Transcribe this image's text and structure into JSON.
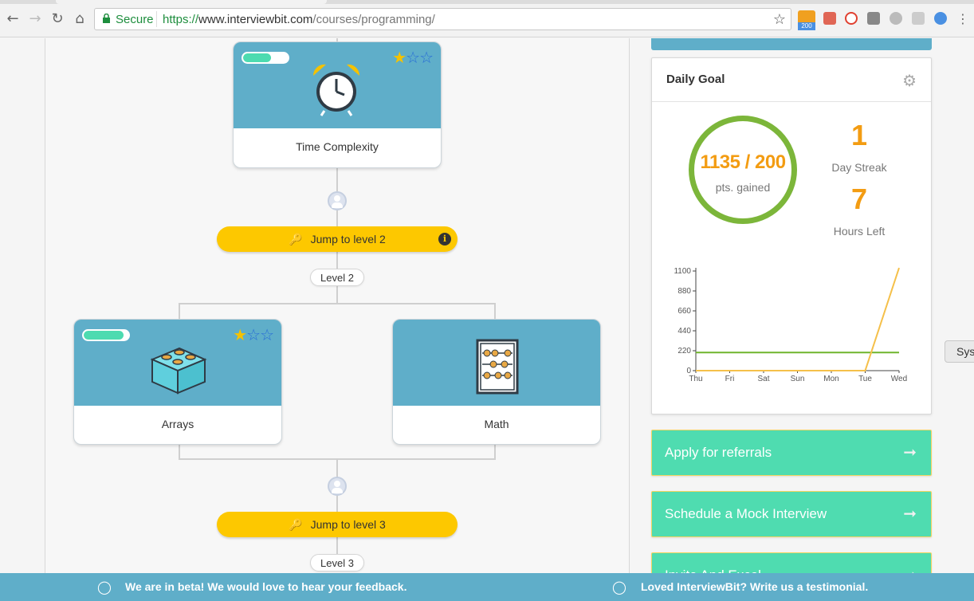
{
  "browser": {
    "secure_label": "Secure",
    "url_protocol": "https://",
    "url_host": "www.interviewbit.com",
    "url_path": "/courses/programming/",
    "ext_badge": "200"
  },
  "path": {
    "cards": [
      {
        "label": "Time Complexity",
        "progress": 0.62,
        "stars": {
          "half": 1,
          "empty": 2
        },
        "icon": "alarm-clock-icon"
      },
      {
        "label": "Arrays",
        "progress": 0.9,
        "stars": {
          "half": 1,
          "empty": 2
        },
        "icon": "lego-brick-icon"
      },
      {
        "label": "Math",
        "icon": "abacus-icon"
      }
    ],
    "jump_buttons": [
      {
        "label": "Jump to level 2"
      },
      {
        "label": "Jump to level 3"
      }
    ],
    "levels": [
      "Level 2",
      "Level 3"
    ]
  },
  "daily_goal": {
    "title": "Daily Goal",
    "points": "1135 / 200",
    "points_label": "pts. gained",
    "streak_value": "1",
    "streak_label": "Day Streak",
    "hours_value": "7",
    "hours_label": "Hours Left"
  },
  "chart_data": {
    "type": "line",
    "categories": [
      "Thu",
      "Fri",
      "Sat",
      "Sun",
      "Mon",
      "Tue",
      "Wed"
    ],
    "yticks": [
      "0",
      "220",
      "440",
      "660",
      "880",
      "1100"
    ],
    "ylim": [
      0,
      1100
    ],
    "series": [
      {
        "values": [
          200,
          200,
          200,
          200,
          200,
          200,
          200
        ],
        "color": "#6fb52c"
      },
      {
        "values": [
          0,
          0,
          0,
          0,
          0,
          0,
          1135
        ],
        "color": "#f5c04a"
      }
    ]
  },
  "actions": [
    {
      "label": "Apply for referrals"
    },
    {
      "label": "Schedule a Mock Interview"
    },
    {
      "label": "Invite And Excel"
    }
  ],
  "sys_button": "Sys",
  "footer": {
    "beta_message": "We are in beta! We would love to hear your feedback.",
    "testimonial_message": "Loved InterviewBit? Write us a testimonial."
  }
}
